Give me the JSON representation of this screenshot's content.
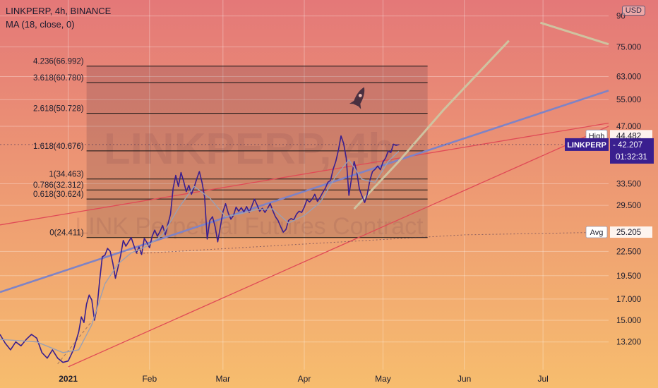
{
  "header": {
    "symbol_line": "LINKPERP, 4h, BINANCE",
    "indicator_line": "MA (18, close, 0)",
    "currency_button": "USD"
  },
  "watermark": {
    "big": "LINKPERP, 4h",
    "sub": "LINK Perpetual Futures Contract"
  },
  "colors": {
    "bg_top": "#e47878",
    "bg_bottom": "#f7bd6e",
    "price": "#3a1f8f",
    "ma": "#9aa0b4",
    "channel": "#e04a56",
    "trend": "#7e83c6",
    "projection": "#cfc3a0",
    "fib_line": "#111111",
    "tag_dark": "#3a1f8f"
  },
  "chart_data": {
    "type": "line",
    "title": "LINKPERP, 4h, BINANCE",
    "yscale": "log",
    "ylim": [
      11.4,
      91
    ],
    "xlim": [
      "2020-12-06",
      "2021-07-26"
    ],
    "grid": true,
    "x_ticks": [
      {
        "label": "2021",
        "x": "2021-01-01"
      },
      {
        "label": "Feb",
        "x": "2021-02-01"
      },
      {
        "label": "Mar",
        "x": "2021-03-01"
      },
      {
        "label": "Apr",
        "x": "2021-04-01"
      },
      {
        "label": "May",
        "x": "2021-05-01"
      },
      {
        "label": "Jun",
        "x": "2021-06-01"
      },
      {
        "label": "Jul",
        "x": "2021-07-01"
      }
    ],
    "y_ticks": [
      "90",
      "75.000",
      "63.000",
      "55.000",
      "47.000",
      "33.500",
      "29.500",
      "22.500",
      "19.500",
      "17.000",
      "15.000",
      "13.200"
    ],
    "fib_levels": [
      {
        "ratio": "4.236",
        "value": 66.992,
        "label": "4.236(66.992)"
      },
      {
        "ratio": "3.618",
        "value": 60.78,
        "label": "3.618(60.780)"
      },
      {
        "ratio": "2.618",
        "value": 50.728,
        "label": "2.618(50.728)"
      },
      {
        "ratio": "1.618",
        "value": 40.676,
        "label": "1.618(40.676)"
      },
      {
        "ratio": "1",
        "value": 34.463,
        "label": "1(34.463)"
      },
      {
        "ratio": "0.786",
        "value": 32.312,
        "label": "0.786(32.312)"
      },
      {
        "ratio": "0.618",
        "value": 30.624,
        "label": "0.618(30.624)"
      },
      {
        "ratio": "0",
        "value": 24.411,
        "label": "0(24.411)"
      }
    ],
    "fib_range": [
      "2021-01-08",
      "2021-05-18"
    ],
    "labels": {
      "high": {
        "text": "High",
        "value": "44.482",
        "y": 44.482
      },
      "last": {
        "symbol": "LINKPERP",
        "price": "42.207",
        "countdown": "01:32:31",
        "y": 42.207
      },
      "avg": {
        "text": "Avg",
        "value": "25.205",
        "y": 25.205
      }
    },
    "series": [
      {
        "name": "LINKPERP",
        "role": "price",
        "points": [
          [
            "2020-12-06",
            13.8
          ],
          [
            "2020-12-08",
            13.1
          ],
          [
            "2020-12-10",
            12.6
          ],
          [
            "2020-12-12",
            13.2
          ],
          [
            "2020-12-14",
            12.9
          ],
          [
            "2020-12-16",
            13.4
          ],
          [
            "2020-12-18",
            13.8
          ],
          [
            "2020-12-20",
            13.5
          ],
          [
            "2020-12-22",
            12.4
          ],
          [
            "2020-12-24",
            12.0
          ],
          [
            "2020-12-26",
            12.6
          ],
          [
            "2020-12-28",
            12.0
          ],
          [
            "2020-12-30",
            11.7
          ],
          [
            "2021-01-01",
            11.8
          ],
          [
            "2021-01-03",
            12.6
          ],
          [
            "2021-01-05",
            14.0
          ],
          [
            "2021-01-06",
            15.3
          ],
          [
            "2021-01-07",
            14.8
          ],
          [
            "2021-01-08",
            16.5
          ],
          [
            "2021-01-09",
            17.4
          ],
          [
            "2021-01-10",
            16.9
          ],
          [
            "2021-01-11",
            15.0
          ],
          [
            "2021-01-12",
            16.2
          ],
          [
            "2021-01-13",
            19.0
          ],
          [
            "2021-01-14",
            21.8
          ],
          [
            "2021-01-15",
            22.0
          ],
          [
            "2021-01-16",
            22.9
          ],
          [
            "2021-01-17",
            22.5
          ],
          [
            "2021-01-18",
            21.0
          ],
          [
            "2021-01-19",
            19.2
          ],
          [
            "2021-01-20",
            20.5
          ],
          [
            "2021-01-21",
            22.0
          ],
          [
            "2021-01-22",
            24.0
          ],
          [
            "2021-01-23",
            23.2
          ],
          [
            "2021-01-24",
            23.8
          ],
          [
            "2021-01-25",
            24.4
          ],
          [
            "2021-01-27",
            22.3
          ],
          [
            "2021-01-28",
            23.1
          ],
          [
            "2021-01-29",
            22.1
          ],
          [
            "2021-01-30",
            24.3
          ],
          [
            "2021-01-31",
            23.7
          ],
          [
            "2021-02-01",
            23.0
          ],
          [
            "2021-02-02",
            24.6
          ],
          [
            "2021-02-03",
            25.5
          ],
          [
            "2021-02-04",
            24.6
          ],
          [
            "2021-02-05",
            25.3
          ],
          [
            "2021-02-06",
            26.2
          ],
          [
            "2021-02-07",
            24.8
          ],
          [
            "2021-02-08",
            26.4
          ],
          [
            "2021-02-09",
            28.0
          ],
          [
            "2021-02-10",
            32.6
          ],
          [
            "2021-02-11",
            35.2
          ],
          [
            "2021-02-12",
            33.0
          ],
          [
            "2021-02-13",
            35.8
          ],
          [
            "2021-02-14",
            34.0
          ],
          [
            "2021-02-15",
            32.0
          ],
          [
            "2021-02-16",
            33.2
          ],
          [
            "2021-02-17",
            31.5
          ],
          [
            "2021-02-18",
            32.8
          ],
          [
            "2021-02-19",
            34.5
          ],
          [
            "2021-02-20",
            36.0
          ],
          [
            "2021-02-21",
            33.8
          ],
          [
            "2021-02-22",
            31.0
          ],
          [
            "2021-02-23",
            24.2
          ],
          [
            "2021-02-24",
            27.0
          ],
          [
            "2021-02-25",
            27.6
          ],
          [
            "2021-02-26",
            26.0
          ],
          [
            "2021-02-27",
            23.8
          ],
          [
            "2021-02-28",
            26.0
          ],
          [
            "2021-03-01",
            28.4
          ],
          [
            "2021-03-02",
            29.8
          ],
          [
            "2021-03-03",
            28.2
          ],
          [
            "2021-03-04",
            27.2
          ],
          [
            "2021-03-05",
            27.8
          ],
          [
            "2021-03-06",
            29.2
          ],
          [
            "2021-03-07",
            28.5
          ],
          [
            "2021-03-08",
            29.1
          ],
          [
            "2021-03-09",
            28.4
          ],
          [
            "2021-03-10",
            29.3
          ],
          [
            "2021-03-11",
            28.3
          ],
          [
            "2021-03-12",
            29.4
          ],
          [
            "2021-03-13",
            30.6
          ],
          [
            "2021-03-14",
            29.6
          ],
          [
            "2021-03-15",
            28.5
          ],
          [
            "2021-03-16",
            29.0
          ],
          [
            "2021-03-17",
            28.3
          ],
          [
            "2021-03-18",
            29.0
          ],
          [
            "2021-03-19",
            29.8
          ],
          [
            "2021-03-20",
            28.6
          ],
          [
            "2021-03-21",
            27.6
          ],
          [
            "2021-03-22",
            27.0
          ],
          [
            "2021-03-23",
            26.0
          ],
          [
            "2021-03-24",
            25.2
          ],
          [
            "2021-03-25",
            25.6
          ],
          [
            "2021-03-26",
            27.0
          ],
          [
            "2021-03-27",
            27.3
          ],
          [
            "2021-03-28",
            27.1
          ],
          [
            "2021-03-29",
            28.0
          ],
          [
            "2021-03-30",
            28.5
          ],
          [
            "2021-03-31",
            28.3
          ],
          [
            "2021-04-01",
            29.2
          ],
          [
            "2021-04-02",
            30.5
          ],
          [
            "2021-04-03",
            30.1
          ],
          [
            "2021-04-04",
            30.6
          ],
          [
            "2021-04-05",
            31.5
          ],
          [
            "2021-04-06",
            30.2
          ],
          [
            "2021-04-07",
            30.9
          ],
          [
            "2021-04-08",
            31.8
          ],
          [
            "2021-04-09",
            32.6
          ],
          [
            "2021-04-10",
            33.8
          ],
          [
            "2021-04-11",
            34.2
          ],
          [
            "2021-04-12",
            36.5
          ],
          [
            "2021-04-13",
            38.2
          ],
          [
            "2021-04-14",
            40.8
          ],
          [
            "2021-04-15",
            44.4
          ],
          [
            "2021-04-16",
            42.5
          ],
          [
            "2021-04-17",
            39.0
          ],
          [
            "2021-04-18",
            31.3
          ],
          [
            "2021-04-19",
            34.6
          ],
          [
            "2021-04-20",
            38.2
          ],
          [
            "2021-04-21",
            36.0
          ],
          [
            "2021-04-22",
            32.5
          ],
          [
            "2021-04-23",
            31.2
          ],
          [
            "2021-04-24",
            30.0
          ],
          [
            "2021-04-25",
            31.5
          ],
          [
            "2021-04-26",
            34.2
          ],
          [
            "2021-04-27",
            36.0
          ],
          [
            "2021-04-28",
            36.5
          ],
          [
            "2021-04-29",
            37.2
          ],
          [
            "2021-04-30",
            36.4
          ],
          [
            "2021-05-01",
            38.1
          ],
          [
            "2021-05-02",
            39.0
          ],
          [
            "2021-05-03",
            40.6
          ],
          [
            "2021-05-04",
            40.3
          ],
          [
            "2021-05-05",
            42.3
          ],
          [
            "2021-05-06",
            42.0
          ],
          [
            "2021-05-07",
            42.2
          ]
        ]
      },
      {
        "name": "MA (18, close, 0)",
        "role": "moving_average",
        "points": [
          [
            "2020-12-06",
            13.4
          ],
          [
            "2020-12-20",
            13.2
          ],
          [
            "2020-12-30",
            12.4
          ],
          [
            "2021-01-05",
            12.6
          ],
          [
            "2021-01-10",
            14.6
          ],
          [
            "2021-01-15",
            18.6
          ],
          [
            "2021-01-20",
            20.9
          ],
          [
            "2021-01-25",
            22.3
          ],
          [
            "2021-01-31",
            23.2
          ],
          [
            "2021-02-06",
            24.8
          ],
          [
            "2021-02-12",
            29.0
          ],
          [
            "2021-02-18",
            33.0
          ],
          [
            "2021-02-24",
            30.8
          ],
          [
            "2021-03-02",
            27.6
          ],
          [
            "2021-03-08",
            28.1
          ],
          [
            "2021-03-14",
            28.8
          ],
          [
            "2021-03-20",
            28.9
          ],
          [
            "2021-03-26",
            26.6
          ],
          [
            "2021-04-01",
            27.8
          ],
          [
            "2021-04-07",
            30.0
          ],
          [
            "2021-04-13",
            35.0
          ],
          [
            "2021-04-18",
            38.6
          ],
          [
            "2021-04-23",
            34.4
          ],
          [
            "2021-04-28",
            33.8
          ],
          [
            "2021-05-03",
            38.2
          ],
          [
            "2021-05-07",
            40.6
          ]
        ]
      }
    ],
    "drawings": [
      {
        "name": "channel-upper-line",
        "kind": "line",
        "points": [
          [
            "2020-12-06",
            26.3
          ],
          [
            "2021-07-26",
            47.9
          ]
        ]
      },
      {
        "name": "channel-lower-line",
        "kind": "line",
        "points": [
          [
            "2021-01-01",
            11.4
          ],
          [
            "2021-07-26",
            47.0
          ]
        ]
      },
      {
        "name": "trend-line",
        "kind": "line",
        "points": [
          [
            "2020-12-06",
            17.7
          ],
          [
            "2021-07-26",
            58.0
          ]
        ]
      },
      {
        "name": "projection-path",
        "kind": "line",
        "points": [
          [
            "2021-04-20",
            28.9
          ],
          [
            "2021-05-07",
            38.2
          ],
          [
            "2021-05-24",
            51.7
          ],
          [
            "2021-06-18",
            77.8
          ]
        ]
      },
      {
        "name": "projection-segment",
        "kind": "line",
        "points": [
          [
            "2021-06-30",
            86.5
          ],
          [
            "2021-07-26",
            76.2
          ]
        ]
      },
      {
        "name": "avg-dotted-line",
        "kind": "dotted",
        "points": [
          [
            "2021-01-27",
            22.2
          ],
          [
            "2021-06-01",
            24.8
          ],
          [
            "2021-07-26",
            25.2
          ]
        ]
      },
      {
        "name": "current-price-dotted-line",
        "kind": "dotted",
        "points": [
          [
            "2020-12-06",
            42.207
          ],
          [
            "2021-07-26",
            42.207
          ]
        ]
      },
      {
        "name": "early-dashed-line",
        "kind": "dashed",
        "points": [
          [
            "2020-12-28",
            11.6
          ],
          [
            "2021-01-10",
            14.9
          ]
        ]
      }
    ]
  }
}
